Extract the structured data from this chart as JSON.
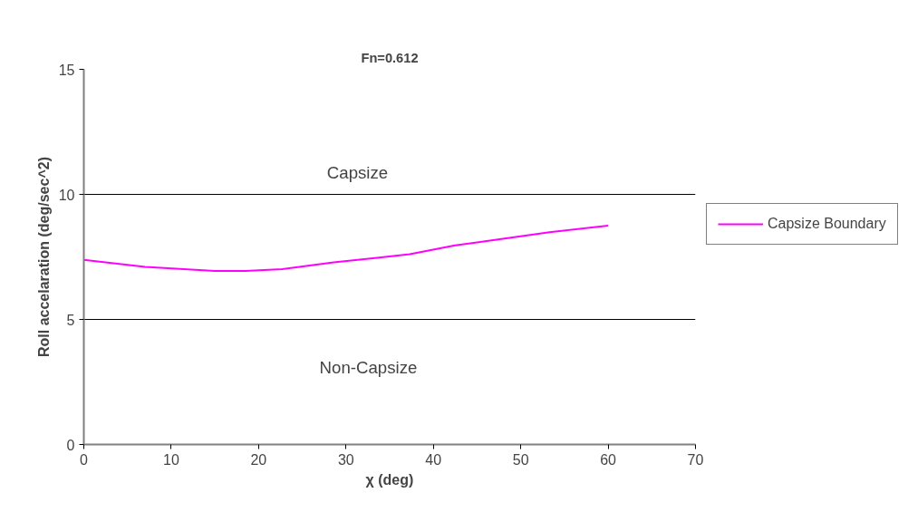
{
  "chart_data": {
    "type": "line",
    "title": "Fn=0.612",
    "xlabel": "χ (deg)",
    "ylabel": "Roll accelaration (deg/sec^2)",
    "x": [
      0,
      7,
      15,
      18.5,
      22.7,
      28.6,
      33.8,
      37.3,
      42.5,
      45,
      53.3,
      60
    ],
    "series": [
      {
        "name": "Capsize Boundary",
        "color": "#ff00ff",
        "values": [
          7.38,
          7.1,
          6.94,
          6.94,
          7.01,
          7.28,
          7.47,
          7.61,
          7.96,
          8.08,
          8.49,
          8.75
        ]
      }
    ],
    "xlim": [
      0,
      70
    ],
    "xticks": [
      0,
      10,
      20,
      30,
      40,
      50,
      60,
      70
    ],
    "ylim": [
      0,
      15
    ],
    "yticks": [
      0,
      5,
      10,
      15
    ],
    "grid": "y",
    "legend": "right",
    "marker": "none",
    "line_style": "solid",
    "annotations": [
      "Capsize",
      "Non-Capsize"
    ]
  }
}
